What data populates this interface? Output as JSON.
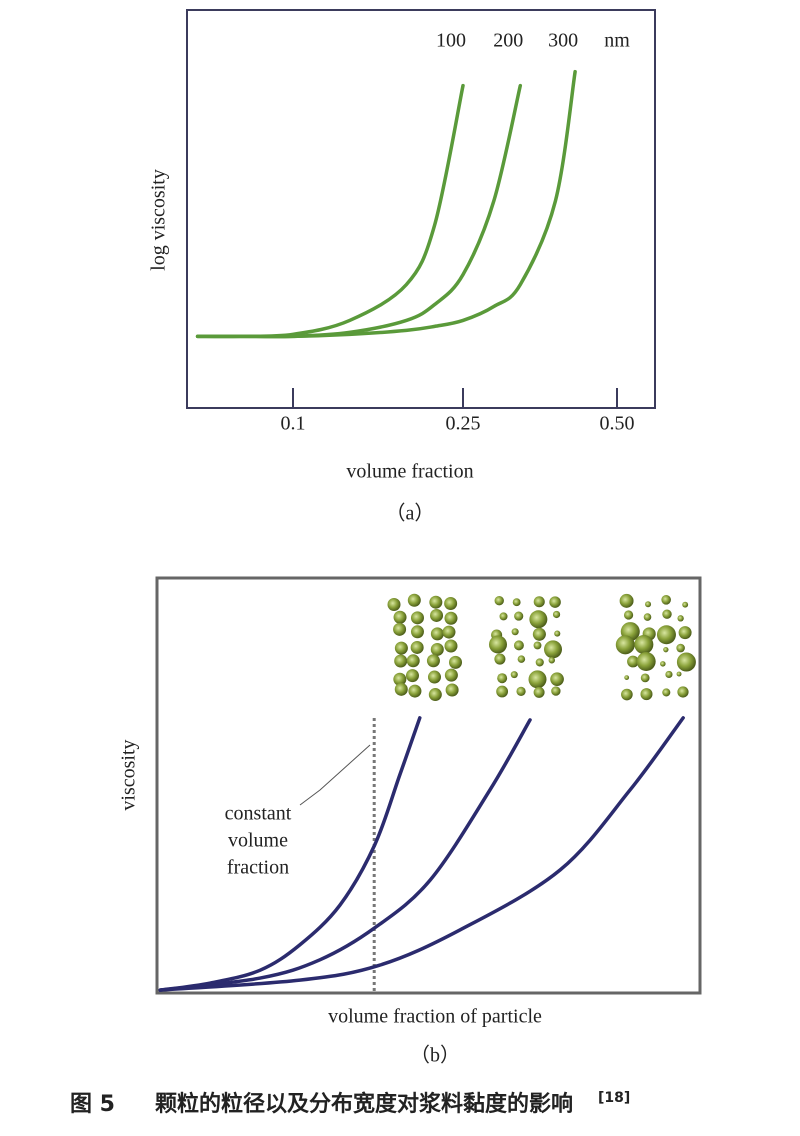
{
  "chart_data": [
    {
      "type": "line",
      "ylabel": "log viscosity",
      "xlabel": "volume fraction",
      "caption": "（a）",
      "x": [
        0.01,
        0.05,
        0.1,
        0.15,
        0.2,
        0.225,
        0.25,
        0.3,
        0.343,
        0.4,
        0.432
      ],
      "xlim": [
        0,
        0.56
      ],
      "xticks": [
        0.1,
        0.25,
        {
          "value": 0.5,
          "label": "0.50"
        }
      ],
      "ylim": [
        0,
        10
      ],
      "unit_label": "nm",
      "series": [
        {
          "name": "100",
          "color": "#5a9a3a",
          "values": [
            1.8,
            1.8,
            1.85,
            2.2,
            3.1,
            4.6,
            8.1,
            null,
            null,
            null,
            null
          ]
        },
        {
          "name": "200",
          "color": "#5a9a3a",
          "values": [
            1.8,
            1.8,
            1.8,
            1.9,
            2.2,
            2.6,
            3.35,
            5.2,
            8.1,
            null,
            null
          ]
        },
        {
          "name": "300",
          "color": "#5a9a3a",
          "values": [
            1.8,
            1.8,
            1.8,
            1.85,
            1.95,
            2.05,
            2.2,
            2.55,
            3.1,
            5.2,
            8.45
          ]
        }
      ]
    },
    {
      "type": "line",
      "ylabel": "viscosity",
      "xlabel": "volume fraction of particle",
      "caption": "（b）",
      "annotation": [
        "constant",
        "volume",
        "fraction"
      ],
      "reference_x": 4.0,
      "xlim": [
        0,
        10
      ],
      "ylim": [
        0,
        10
      ],
      "series": [
        {
          "color": "#2b2b6e",
          "x": [
            0.06,
            0.98,
            1.9,
            2.63,
            3.37,
            4.01,
            4.47,
            4.84
          ],
          "values": [
            0.07,
            0.24,
            0.55,
            1.16,
            2.12,
            3.57,
            5.25,
            6.63
          ]
        },
        {
          "color": "#2b2b6e",
          "x": [
            0.06,
            1.9,
            3.0,
            4.01,
            5.03,
            6.13,
            6.87
          ],
          "values": [
            0.07,
            0.36,
            0.8,
            1.57,
            2.72,
            4.89,
            6.58
          ]
        },
        {
          "color": "#2b2b6e",
          "x": [
            0.06,
            2.63,
            4.1,
            5.58,
            7.42,
            8.71,
            9.69
          ],
          "values": [
            0.07,
            0.31,
            0.67,
            1.52,
            2.96,
            4.89,
            6.63
          ]
        }
      ]
    }
  ],
  "figure_caption": {
    "label": "图 5",
    "text": "颗粒的粒径以及分布宽度对浆料黏度的影响",
    "ref": "[18]"
  }
}
